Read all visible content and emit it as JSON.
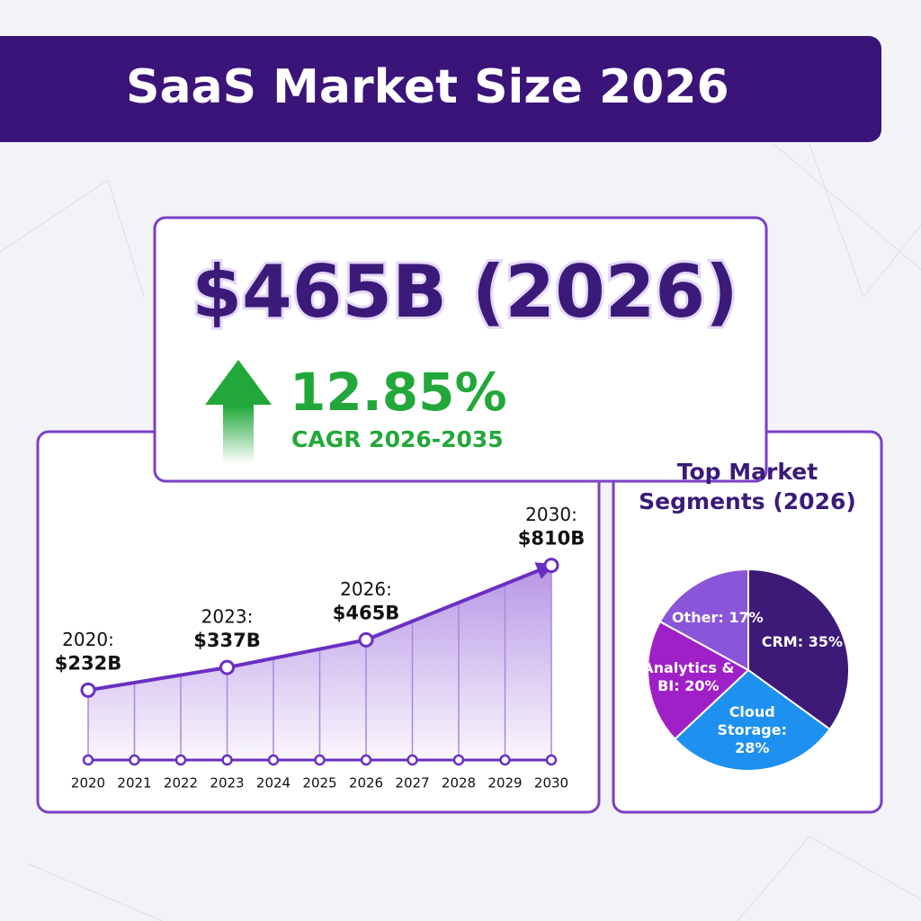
{
  "header": {
    "title": "SaaS Market Size 2026"
  },
  "headline": {
    "value": "$465B (2026)",
    "growth": "12.85%",
    "growth_label": "CAGR 2026-2035"
  },
  "chart_data": [
    {
      "type": "line",
      "color": "#6a2fc2",
      "x": [
        2020,
        2023,
        2026,
        2030
      ],
      "values": [
        232,
        337,
        465,
        810
      ],
      "value_labels": [
        "$232B",
        "$337B",
        "$465B",
        "$810B"
      ],
      "point_labels": [
        "2020:",
        "2023:",
        "2026:",
        "2030:"
      ],
      "xlim": [
        2020,
        2030
      ],
      "xticks": [
        2020,
        2021,
        2022,
        2023,
        2024,
        2025,
        2026,
        2027,
        2028,
        2029,
        2030
      ],
      "ylim": [
        0,
        900
      ],
      "grid": true
    },
    {
      "type": "pie",
      "title": "Top Market Segments (2026)",
      "categories": [
        "CRM:",
        "Cloud Storage:",
        "Analytics & BI:",
        "Other:"
      ],
      "values": [
        35,
        28,
        20,
        17
      ],
      "value_labels": [
        "35%",
        "28%",
        "20%",
        "17%"
      ],
      "colors": [
        "#3d1a78",
        "#1e90f0",
        "#a020c8",
        "#8a55d8"
      ]
    }
  ]
}
